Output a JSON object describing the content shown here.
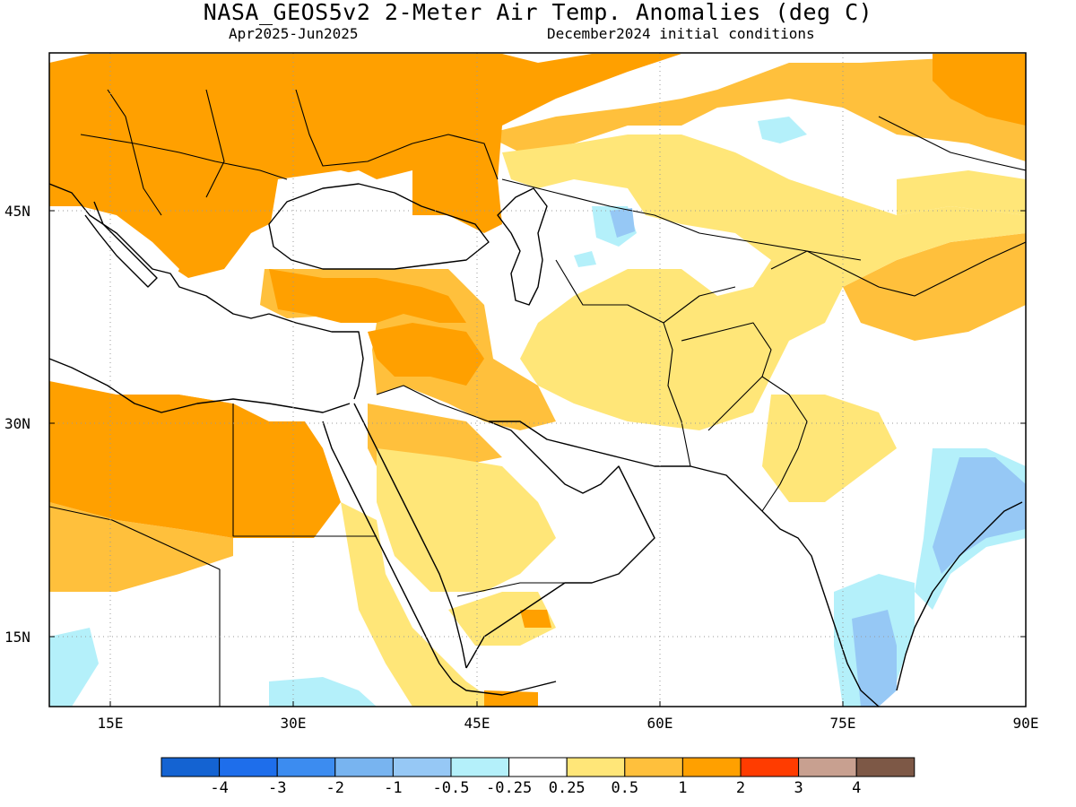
{
  "title": "NASA_GEOS5v2 2-Meter Air Temp. Anomalies (deg C)",
  "subtitle_left": "Apr2025-Jun2025",
  "subtitle_right": "December2024 initial conditions",
  "map": {
    "lon_range": [
      10,
      90
    ],
    "lat_range": [
      10,
      55
    ],
    "lat_ticks": [
      {
        "value": 45,
        "label": "45N"
      },
      {
        "value": 30,
        "label": "30N"
      },
      {
        "value": 15,
        "label": "15N"
      }
    ],
    "lon_ticks": [
      {
        "value": 15,
        "label": "15E"
      },
      {
        "value": 30,
        "label": "30E"
      },
      {
        "value": 45,
        "label": "45E"
      },
      {
        "value": 60,
        "label": "60E"
      },
      {
        "value": 75,
        "label": "75E"
      },
      {
        "value": 90,
        "label": "90E"
      }
    ]
  },
  "colorbar": {
    "colors": [
      "#1463d2",
      "#1e6eeb",
      "#3c8cf0",
      "#78b4f0",
      "#96c8f5",
      "#b4f0fa",
      "#ffffff",
      "#ffe678",
      "#ffc03c",
      "#ffa000",
      "#ff3c00",
      "#c8a090",
      "#7d5846"
    ],
    "labels": [
      "-4",
      "-3",
      "-2",
      "-1",
      "-0.5",
      "-0.25",
      "0.25",
      "0.5",
      "1",
      "2",
      "3",
      "4"
    ]
  },
  "colors": {
    "anomaly_1_2": "#ffa000",
    "anomaly_05_1": "#ffc03c",
    "anomaly_025_05": "#ffe678",
    "anomaly_neg_025_05": "#b4f0fa",
    "anomaly_neg_05_1": "#96c8f5",
    "anomaly_neg_1_2": "#78b4f0"
  }
}
